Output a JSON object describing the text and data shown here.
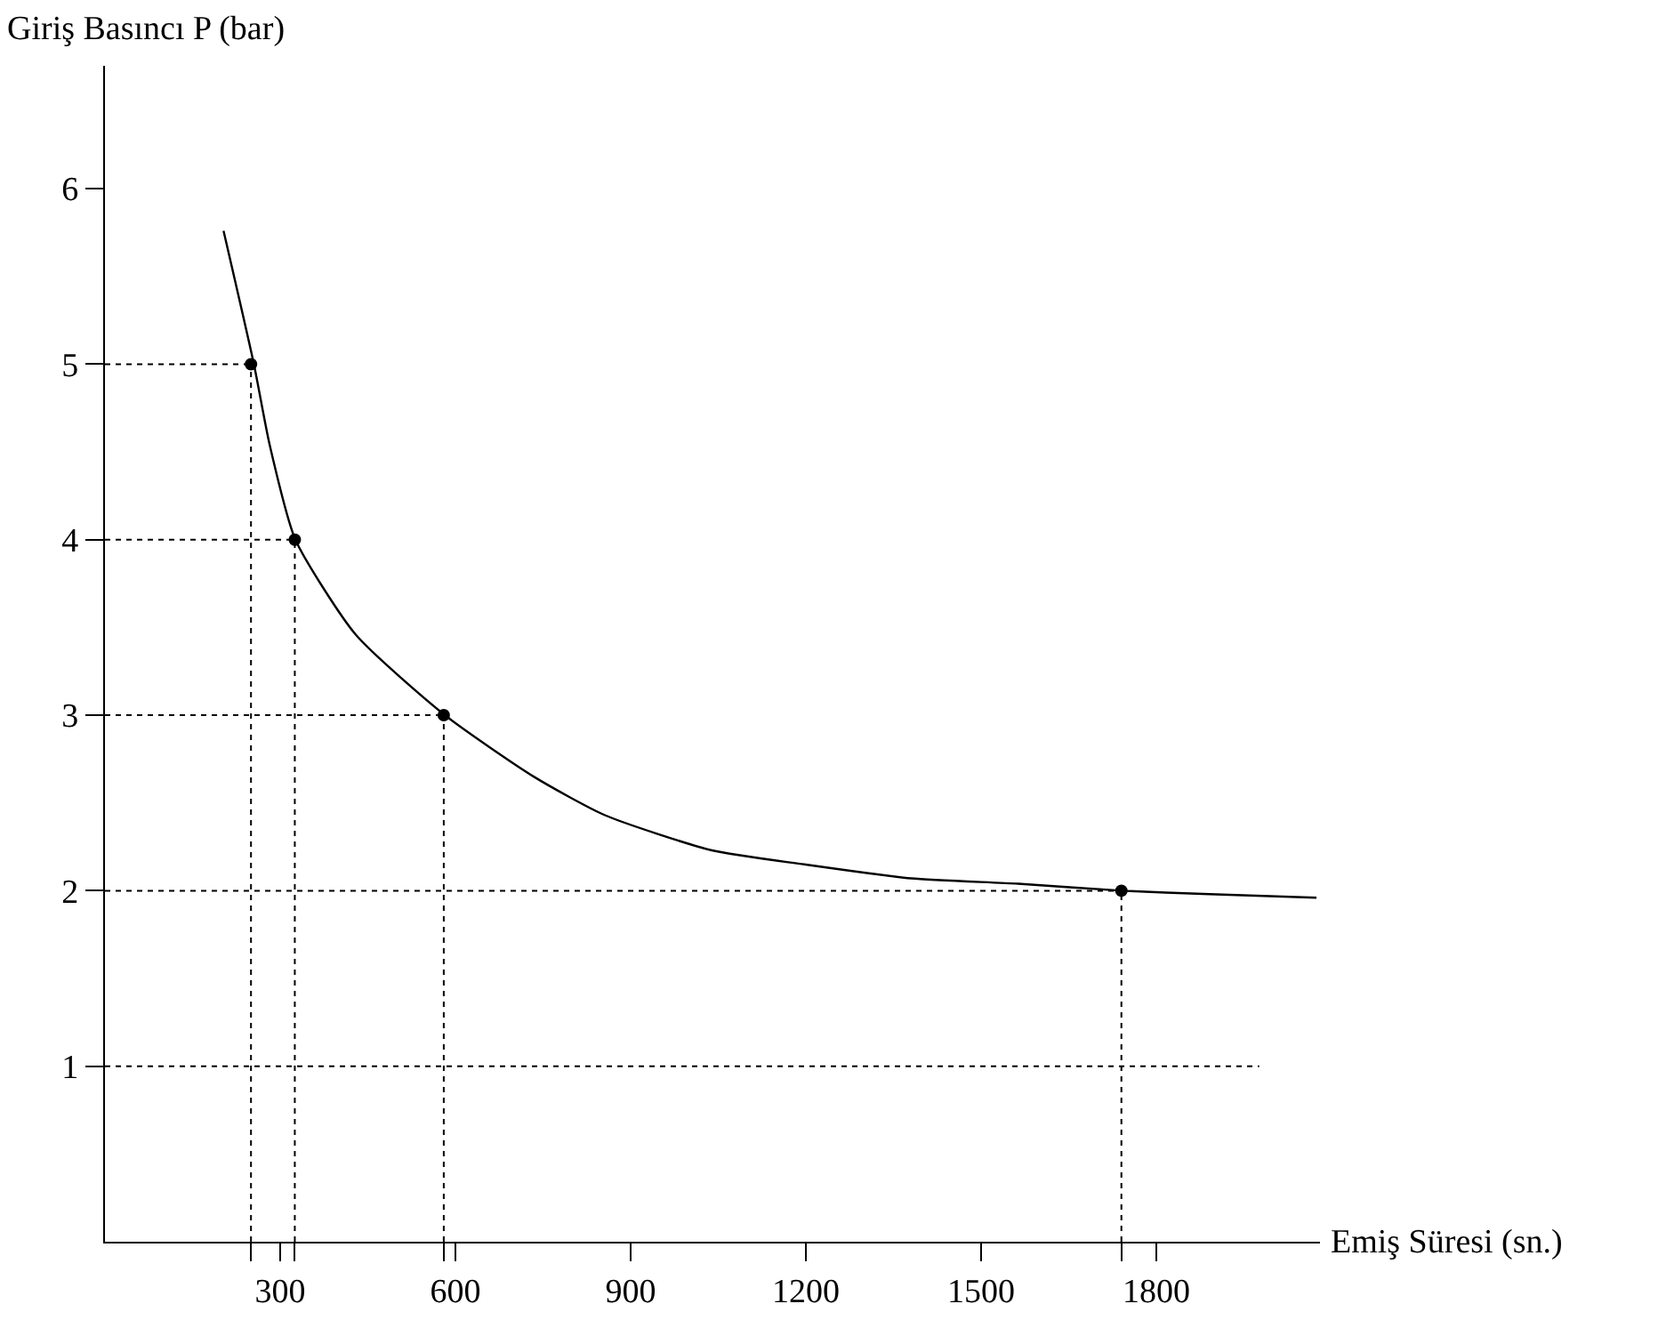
{
  "chart_data": {
    "type": "line",
    "xlabel": "Emiş Süresi (sn.)",
    "ylabel": "Giriş Basıncı P (bar)",
    "xlim": [
      0,
      2080
    ],
    "ylim": [
      0,
      6.7
    ],
    "xticks": [
      {
        "value": 250,
        "label": null
      },
      300,
      {
        "value": 325,
        "label": null
      },
      {
        "value": 580,
        "label": null
      },
      600,
      900,
      1200,
      1500,
      {
        "value": 1740,
        "label": null
      },
      1800
    ],
    "yticks": [
      1,
      2,
      3,
      4,
      5,
      6
    ],
    "series": [
      {
        "color": "#000000",
        "marker": "none",
        "line_style": "solid",
        "x": [
          203,
          255,
          282,
          326,
          429,
          582,
          734,
          856,
          1039,
          1197,
          1380,
          1563,
          1741,
          1891,
          2074
        ],
        "values": [
          5.76,
          5,
          4.54,
          4,
          3.46,
          3,
          2.65,
          2.43,
          2.23,
          2.15,
          2.07,
          2.04,
          2,
          1.98,
          1.96
        ]
      },
      {
        "type": "scatter",
        "color": "#000000",
        "marker": "circle",
        "x": [
          250,
          325,
          580,
          1740
        ],
        "values": [
          5,
          4,
          3,
          2
        ]
      }
    ],
    "ref_lines": [
      {
        "axis": "y",
        "value": 5,
        "label": null,
        "line_style": "dotted",
        "color": "#000000"
      },
      {
        "axis": "y",
        "value": 4,
        "label": null,
        "line_style": "dotted",
        "color": "#000000"
      },
      {
        "axis": "y",
        "value": 3,
        "label": null,
        "line_style": "dotted",
        "color": "#000000"
      },
      {
        "axis": "y",
        "value": 2,
        "label": null,
        "line_style": "dotted",
        "color": "#000000"
      },
      {
        "axis": "y",
        "value": 1,
        "label": null,
        "line_style": "dotted",
        "color": "#000000"
      },
      {
        "axis": "x",
        "value": 250,
        "label": null,
        "line_style": "dotted",
        "color": "#000000"
      },
      {
        "axis": "x",
        "value": 325,
        "label": null,
        "line_style": "dotted",
        "color": "#000000"
      },
      {
        "axis": "x",
        "value": 580,
        "label": null,
        "line_style": "dotted",
        "color": "#000000"
      },
      {
        "axis": "x",
        "value": 1740,
        "label": null,
        "line_style": "dotted",
        "color": "#000000"
      }
    ]
  }
}
